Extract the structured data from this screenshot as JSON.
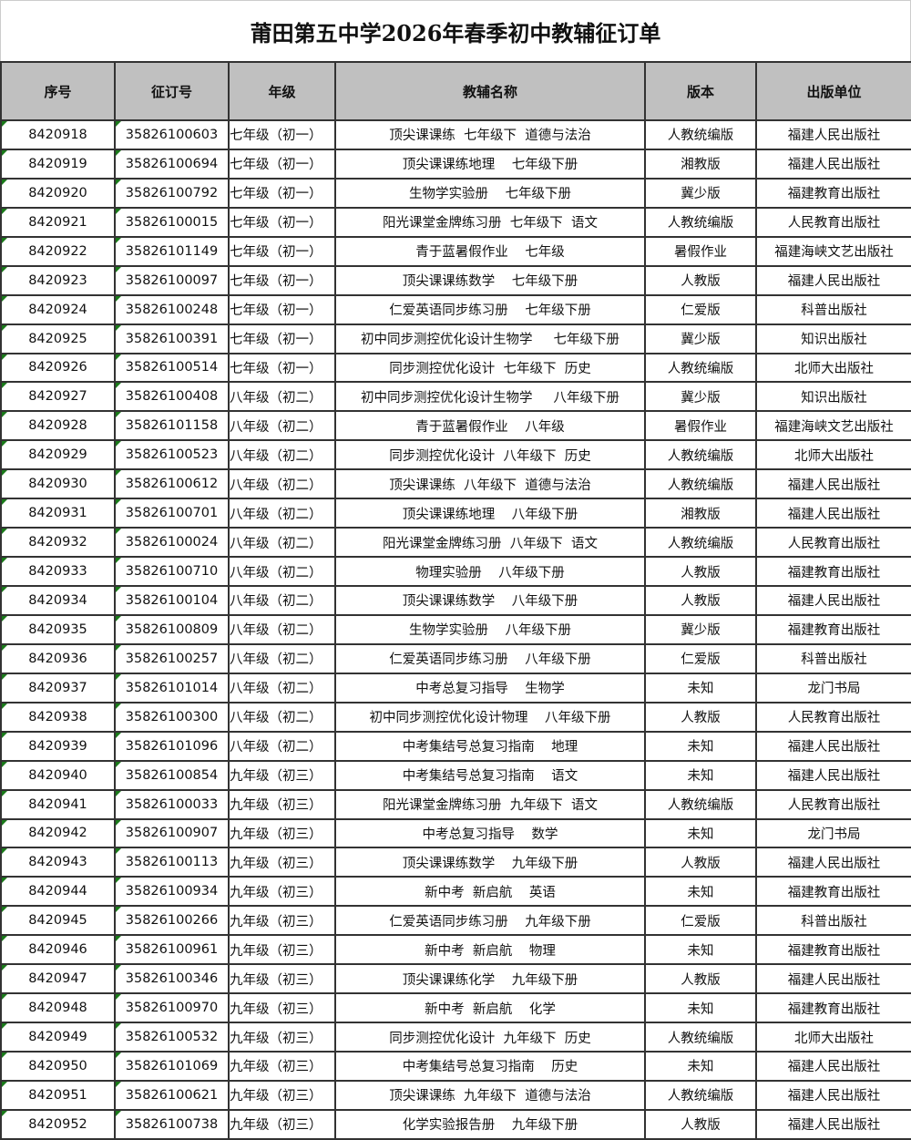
{
  "title": "莆田第五中学2026年春季初中教辅征订单",
  "headers": [
    "序号",
    "征订号",
    "年级",
    "教辅名称",
    "版本",
    "出版单位"
  ],
  "rows": [
    [
      "8420918",
      "35826100603",
      "七年级（初一）",
      "顶尖课课练  七年级下  道德与法治",
      "人教统编版",
      "福建人民出版社"
    ],
    [
      "8420919",
      "35826100694",
      "七年级（初一）",
      "顶尖课课练地理    七年级下册",
      "湘教版",
      "福建人民出版社"
    ],
    [
      "8420920",
      "35826100792",
      "七年级（初一）",
      "生物学实验册    七年级下册",
      "冀少版",
      "福建教育出版社"
    ],
    [
      "8420921",
      "35826100015",
      "七年级（初一）",
      "阳光课堂金牌练习册  七年级下  语文",
      "人教统编版",
      "人民教育出版社"
    ],
    [
      "8420922",
      "35826101149",
      "七年级（初一）",
      "青于蓝暑假作业    七年级",
      "暑假作业",
      "福建海峡文艺出版社"
    ],
    [
      "8420923",
      "35826100097",
      "七年级（初一）",
      "顶尖课课练数学    七年级下册",
      "人教版",
      "福建人民出版社"
    ],
    [
      "8420924",
      "35826100248",
      "七年级（初一）",
      "仁爱英语同步练习册    七年级下册",
      "仁爱版",
      "科普出版社"
    ],
    [
      "8420925",
      "35826100391",
      "七年级（初一）",
      "初中同步测控优化设计生物学     七年级下册",
      "冀少版",
      "知识出版社"
    ],
    [
      "8420926",
      "35826100514",
      "七年级（初一）",
      "同步测控优化设计  七年级下  历史",
      "人教统编版",
      "北师大出版社"
    ],
    [
      "8420927",
      "35826100408",
      "八年级（初二）",
      "初中同步测控优化设计生物学     八年级下册",
      "冀少版",
      "知识出版社"
    ],
    [
      "8420928",
      "35826101158",
      "八年级（初二）",
      "青于蓝暑假作业    八年级",
      "暑假作业",
      "福建海峡文艺出版社"
    ],
    [
      "8420929",
      "35826100523",
      "八年级（初二）",
      "同步测控优化设计  八年级下  历史",
      "人教统编版",
      "北师大出版社"
    ],
    [
      "8420930",
      "35826100612",
      "八年级（初二）",
      "顶尖课课练  八年级下  道德与法治",
      "人教统编版",
      "福建人民出版社"
    ],
    [
      "8420931",
      "35826100701",
      "八年级（初二）",
      "顶尖课课练地理    八年级下册",
      "湘教版",
      "福建人民出版社"
    ],
    [
      "8420932",
      "35826100024",
      "八年级（初二）",
      "阳光课堂金牌练习册  八年级下  语文",
      "人教统编版",
      "人民教育出版社"
    ],
    [
      "8420933",
      "35826100710",
      "八年级（初二）",
      "物理实验册    八年级下册",
      "人教版",
      "福建教育出版社"
    ],
    [
      "8420934",
      "35826100104",
      "八年级（初二）",
      "顶尖课课练数学    八年级下册",
      "人教版",
      "福建人民出版社"
    ],
    [
      "8420935",
      "35826100809",
      "八年级（初二）",
      "生物学实验册    八年级下册",
      "冀少版",
      "福建教育出版社"
    ],
    [
      "8420936",
      "35826100257",
      "八年级（初二）",
      "仁爱英语同步练习册    八年级下册",
      "仁爱版",
      "科普出版社"
    ],
    [
      "8420937",
      "35826101014",
      "八年级（初二）",
      "中考总复习指导    生物学",
      "未知",
      "龙门书局"
    ],
    [
      "8420938",
      "35826100300",
      "八年级（初二）",
      "初中同步测控优化设计物理    八年级下册",
      "人教版",
      "人民教育出版社"
    ],
    [
      "8420939",
      "35826101096",
      "八年级（初二）",
      "中考集结号总复习指南    地理",
      "未知",
      "福建人民出版社"
    ],
    [
      "8420940",
      "35826100854",
      "九年级（初三）",
      "中考集结号总复习指南    语文",
      "未知",
      "福建人民出版社"
    ],
    [
      "8420941",
      "35826100033",
      "九年级（初三）",
      "阳光课堂金牌练习册  九年级下  语文",
      "人教统编版",
      "人民教育出版社"
    ],
    [
      "8420942",
      "35826100907",
      "九年级（初三）",
      "中考总复习指导    数学",
      "未知",
      "龙门书局"
    ],
    [
      "8420943",
      "35826100113",
      "九年级（初三）",
      "顶尖课课练数学    九年级下册",
      "人教版",
      "福建人民出版社"
    ],
    [
      "8420944",
      "35826100934",
      "九年级（初三）",
      "新中考  新启航    英语",
      "未知",
      "福建教育出版社"
    ],
    [
      "8420945",
      "35826100266",
      "九年级（初三）",
      "仁爱英语同步练习册    九年级下册",
      "仁爱版",
      "科普出版社"
    ],
    [
      "8420946",
      "35826100961",
      "九年级（初三）",
      "新中考  新启航    物理",
      "未知",
      "福建教育出版社"
    ],
    [
      "8420947",
      "35826100346",
      "九年级（初三）",
      "顶尖课课练化学    九年级下册",
      "人教版",
      "福建人民出版社"
    ],
    [
      "8420948",
      "35826100970",
      "九年级（初三）",
      "新中考  新启航    化学",
      "未知",
      "福建教育出版社"
    ],
    [
      "8420949",
      "35826100532",
      "九年级（初三）",
      "同步测控优化设计  九年级下  历史",
      "人教统编版",
      "北师大出版社"
    ],
    [
      "8420950",
      "35826101069",
      "九年级（初三）",
      "中考集结号总复习指南    历史",
      "未知",
      "福建人民出版社"
    ],
    [
      "8420951",
      "35826100621",
      "九年级（初三）",
      "顶尖课课练  九年级下  道德与法治",
      "人教统编版",
      "福建人民出版社"
    ],
    [
      "8420952",
      "35826100738",
      "九年级（初三）",
      "化学实验报告册    九年级下册",
      "人教版",
      "福建人民出版社"
    ]
  ]
}
